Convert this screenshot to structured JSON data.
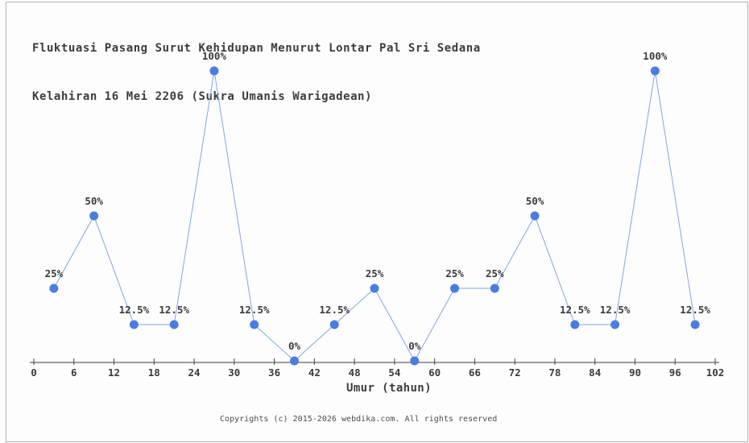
{
  "page": {
    "background_color": "#fdfdfd",
    "border_color": "#b3b3b3"
  },
  "title": {
    "line1": "Fluktuasi Pasang Surut Kehidupan Menurut Lontar Pal Sri Sedana",
    "line2": "Kelahiran 16 Mei 2206 (Sukra Umanis Warigadean)"
  },
  "chart_data": {
    "type": "line",
    "x": [
      3,
      9,
      15,
      21,
      27,
      33,
      39,
      45,
      51,
      57,
      63,
      69,
      75,
      81,
      87,
      93,
      99
    ],
    "values": [
      25,
      50,
      12.5,
      12.5,
      100,
      12.5,
      0,
      12.5,
      25,
      0,
      25,
      25,
      50,
      12.5,
      12.5,
      100,
      12.5
    ],
    "point_labels": [
      "25%",
      "50%",
      "12.5%",
      "12.5%",
      "100%",
      "12.5%",
      "0%",
      "12.5%",
      "25%",
      "0%",
      "25%",
      "25%",
      "50%",
      "12.5%",
      "12.5%",
      "100%",
      "12.5%"
    ],
    "x_ticks": [
      0,
      6,
      12,
      18,
      24,
      30,
      36,
      42,
      48,
      54,
      60,
      66,
      72,
      78,
      84,
      90,
      96,
      102
    ],
    "xlabel": "Umur (tahun)",
    "ylabel": "",
    "xlim": [
      0,
      102
    ],
    "ylim": [
      0,
      100
    ],
    "grid": false,
    "legend": false,
    "line_color": "#7fa6e6",
    "marker_color": "#4a7de2",
    "axis_color": "#404040",
    "text_color": "#3b3b3b"
  },
  "footer": {
    "text": "Copyrights (c) 2015-2026 webdika.com. All rights reserved"
  }
}
